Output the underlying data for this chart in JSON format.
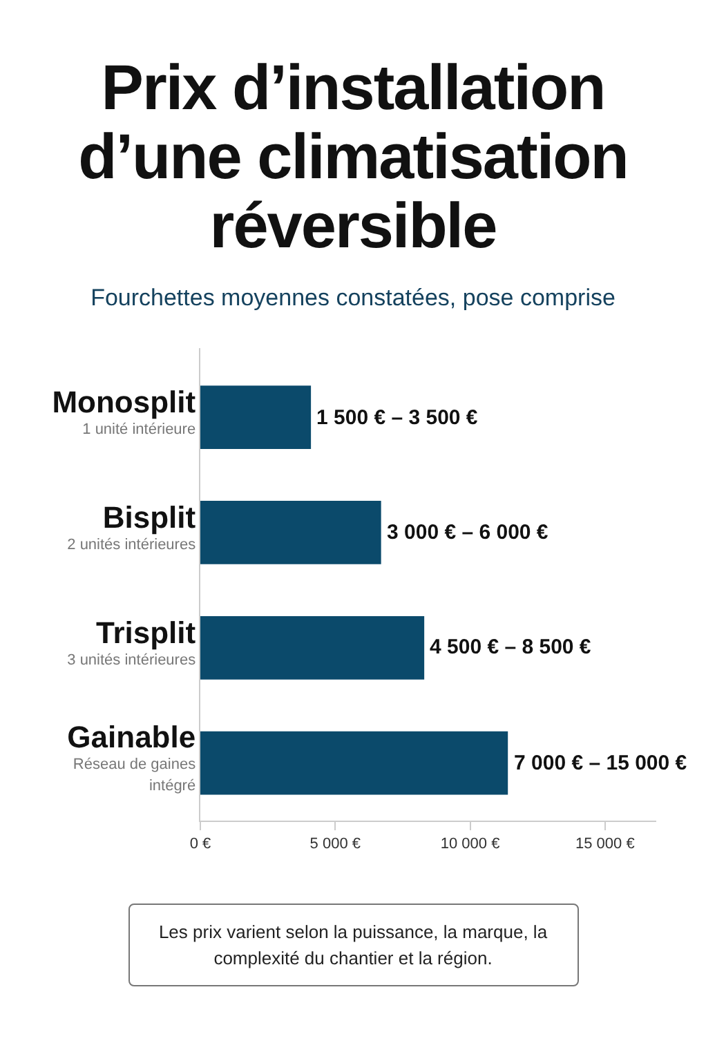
{
  "chart_data": {
    "type": "bar",
    "orientation": "horizontal",
    "title": "Prix d’installation d’une climatisation réversible",
    "subtitle": "Fourchettes moyennes constatées, pose comprise",
    "categories": [
      "Monosplit\n1 unité intérieure",
      "Bisplit\n2 unités intérieures",
      "Trisplit\n3 unités intérieures",
      "Gainable\nRéseau de gaines\nintégré"
    ],
    "values": [
      4100,
      6700,
      8300,
      11400
    ],
    "color": "#0b4a6b",
    "xlim": [
      0,
      16900
    ],
    "xticks": [
      {
        "value": 0,
        "label": "0 €"
      },
      {
        "value": 5000,
        "label": "5 000 €"
      },
      {
        "value": 10000,
        "label": "10 000 €"
      },
      {
        "value": 15000,
        "label": "15 000 €"
      }
    ],
    "grid": false,
    "annotations": [
      {
        "text": "1 500 € – 3 500 €",
        "x": 4100,
        "y": "Monosplit\n1 unité intérieure"
      },
      {
        "text": "3 000 € – 6 000 €",
        "x": 6700,
        "y": "Bisplit\n2 unités intérieures"
      },
      {
        "text": "4 500 € – 8 500 €",
        "x": 8300,
        "y": "Trisplit\n3 unités intérieures"
      },
      {
        "text": "7 000 € – 15 000 €",
        "x": 11400,
        "y": "Gainable\nRéseau de gaines\nintégré"
      },
      "Les prix varient selon la puissance, la marque, la complexité du chantier et la région."
    ]
  }
}
